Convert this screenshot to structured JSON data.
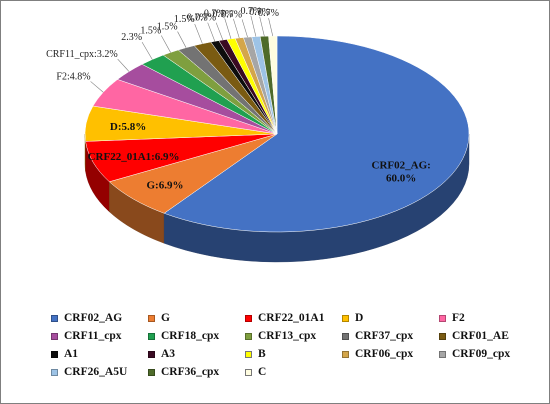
{
  "chart_data": {
    "type": "pie",
    "style": "3d",
    "legend_position": "bottom",
    "slices": [
      {
        "name": "CRF02_AG",
        "value": 60.0,
        "label": "CRF02_AG:\n60.0%",
        "color": "#4472c4"
      },
      {
        "name": "G",
        "value": 6.9,
        "label": "G:6.9%",
        "color": "#ed7d31"
      },
      {
        "name": "CRF22_01A1",
        "value": 6.9,
        "label": "CRF22_01A1:6.9%",
        "color": "#ff0000"
      },
      {
        "name": "D",
        "value": 5.8,
        "label": "D:5.8%",
        "color": "#ffc000"
      },
      {
        "name": "F2",
        "value": 4.8,
        "label": "F2:4.8%",
        "color": "#ff66a3"
      },
      {
        "name": "CRF11_cpx",
        "value": 3.2,
        "label": "CRF11_cpx:3.2%",
        "color": "#a64d9e"
      },
      {
        "name": "CRF18_cpx",
        "value": 2.3,
        "label": "2.3%",
        "color": "#20a050"
      },
      {
        "name": "CRF13_cpx",
        "value": 1.5,
        "label": "1.5%",
        "color": "#7f9f3f"
      },
      {
        "name": "CRF37_cpx",
        "value": 1.5,
        "label": "1.5%",
        "color": "#737373"
      },
      {
        "name": "CRF01_AE",
        "value": 1.5,
        "label": "1.5%",
        "color": "#7a5b12"
      },
      {
        "name": "A1",
        "value": 0.7,
        "label": "0.7%",
        "color": "#0d0d0d"
      },
      {
        "name": "A3",
        "value": 0.7,
        "label": "0.7%",
        "color": "#3a0a22"
      },
      {
        "name": "B",
        "value": 0.7,
        "label": "0.7%",
        "color": "#ffff00"
      },
      {
        "name": "CRF06_cpx",
        "value": 0.7,
        "label": "0.7%",
        "color": "#d4a64a"
      },
      {
        "name": "CRF09_cpx",
        "value": 0.7,
        "label": "0.7%",
        "color": "#a6a6a6"
      },
      {
        "name": "CRF26_A5U",
        "value": 0.7,
        "label": "0.7%",
        "color": "#9dc3e6"
      },
      {
        "name": "CRF36_cpx",
        "value": 0.7,
        "label": "0.7%",
        "color": "#4e6b2a"
      },
      {
        "name": "C",
        "value": 0.7,
        "label": "0.7%",
        "color": "#fffde0"
      }
    ]
  }
}
